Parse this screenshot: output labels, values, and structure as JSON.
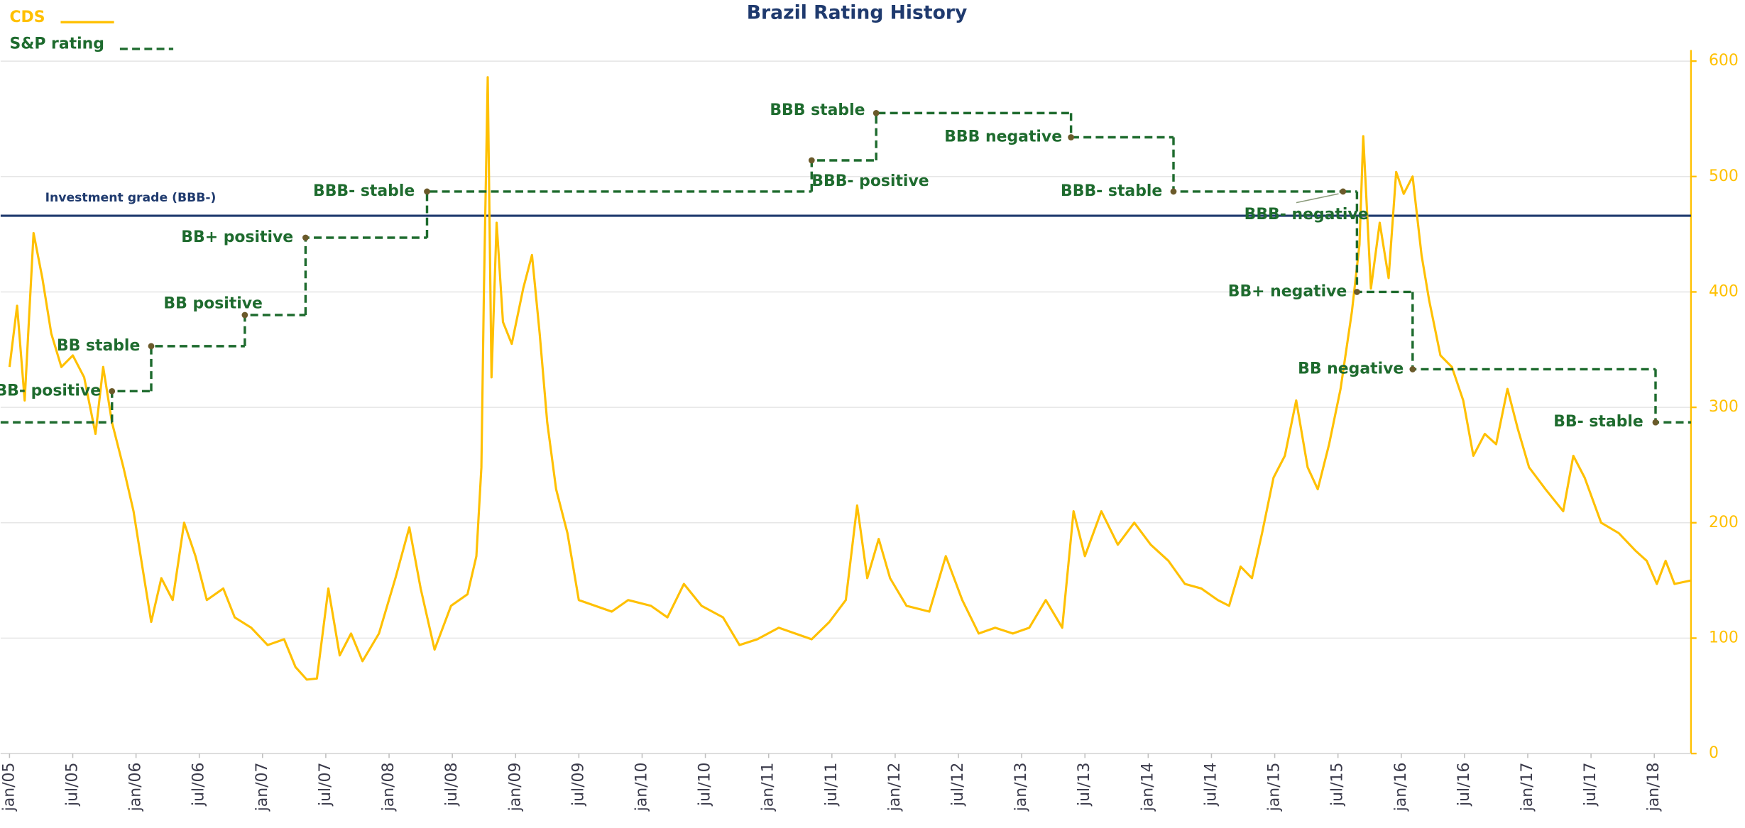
{
  "chart_data": {
    "type": "line",
    "title": "Brazil Rating History",
    "series": [
      {
        "name": "CDS",
        "color": "#FFC000",
        "x": [
          2005.0,
          2005.06,
          2005.12,
          2005.19,
          2005.26,
          2005.33,
          2005.41,
          2005.5,
          2005.59,
          2005.68,
          2005.74,
          2005.81,
          2005.9,
          2005.98,
          2006.05,
          2006.12,
          2006.2,
          2006.29,
          2006.38,
          2006.47,
          2006.56,
          2006.69,
          2006.78,
          2006.91,
          2007.04,
          2007.17,
          2007.26,
          2007.35,
          2007.43,
          2007.52,
          2007.61,
          2007.7,
          2007.79,
          2007.92,
          2008.05,
          2008.16,
          2008.25,
          2008.36,
          2008.49,
          2008.62,
          2008.69,
          2008.73,
          2008.75,
          2008.78,
          2008.81,
          2008.85,
          2008.9,
          2008.97,
          2009.06,
          2009.13,
          2009.19,
          2009.25,
          2009.32,
          2009.41,
          2009.5,
          2009.63,
          2009.76,
          2009.89,
          2010.07,
          2010.2,
          2010.33,
          2010.47,
          2010.64,
          2010.77,
          2010.91,
          2011.08,
          2011.21,
          2011.34,
          2011.48,
          2011.61,
          2011.7,
          2011.78,
          2011.87,
          2011.96,
          2012.09,
          2012.27,
          2012.4,
          2012.53,
          2012.66,
          2012.79,
          2012.93,
          2013.06,
          2013.19,
          2013.32,
          2013.41,
          2013.5,
          2013.63,
          2013.76,
          2013.89,
          2014.02,
          2014.16,
          2014.29,
          2014.42,
          2014.55,
          2014.64,
          2014.73,
          2014.82,
          2014.9,
          2014.99,
          2015.08,
          2015.17,
          2015.26,
          2015.34,
          2015.43,
          2015.52,
          2015.61,
          2015.67,
          2015.7,
          2015.76,
          2015.83,
          2015.9,
          2015.96,
          2016.02,
          2016.09,
          2016.16,
          2016.22,
          2016.31,
          2016.4,
          2016.49,
          2016.57,
          2016.66,
          2016.75,
          2016.84,
          2016.92,
          2017.01,
          2017.14,
          2017.28,
          2017.36,
          2017.45,
          2017.58,
          2017.72,
          2017.85,
          2017.94,
          2018.02,
          2018.09,
          2018.16,
          2018.29
        ],
        "values": [
          335,
          388,
          306,
          451,
          412,
          364,
          335,
          345,
          326,
          277,
          335,
          287,
          248,
          210,
          162,
          114,
          152,
          133,
          200,
          171,
          133,
          143,
          118,
          109,
          94,
          99,
          75,
          64,
          65,
          143,
          85,
          104,
          80,
          104,
          152,
          196,
          143,
          90,
          128,
          138,
          171,
          248,
          403,
          586,
          326,
          460,
          374,
          355,
          403,
          432,
          364,
          287,
          229,
          191,
          133,
          128,
          123,
          133,
          128,
          118,
          147,
          128,
          118,
          94,
          99,
          109,
          104,
          99,
          114,
          133,
          215,
          152,
          186,
          152,
          128,
          123,
          171,
          133,
          104,
          109,
          104,
          109,
          133,
          109,
          210,
          171,
          210,
          181,
          200,
          181,
          167,
          147,
          143,
          133,
          128,
          162,
          152,
          191,
          239,
          258,
          306,
          248,
          229,
          268,
          316,
          383,
          441,
          535,
          403,
          460,
          412,
          504,
          485,
          500,
          432,
          393,
          345,
          335,
          306,
          258,
          277,
          268,
          316,
          282,
          248,
          229,
          210,
          258,
          239,
          200,
          191,
          176,
          167,
          147,
          167,
          147,
          150
        ]
      },
      {
        "name": "S&P rating",
        "color": "#1E6B2E",
        "step": true,
        "dashed": true,
        "x": [
          2004.93,
          2005.81,
          2006.12,
          2006.86,
          2007.34,
          2008.3,
          2011.34,
          2011.85,
          2013.39,
          2014.2,
          2015.54,
          2015.65,
          2016.09,
          2018.01
        ],
        "values": [
          287,
          314,
          353,
          380,
          447,
          487,
          514,
          555,
          534,
          487,
          487,
          400,
          333,
          287
        ],
        "point_labels": [
          null,
          "BB- positive",
          "BB stable",
          "BB positive",
          "BB+ positive",
          "BBB- stable",
          "BBB- positive",
          "BBB  stable",
          "BBB negative",
          "BBB- stable",
          "BBB- negative",
          "BB+ negative",
          "BB negative",
          "BB- stable"
        ]
      }
    ],
    "reference_line": {
      "value": 466,
      "label": "Investment grade (BBB-)",
      "color": "#1F3A6E"
    },
    "xlim": [
      2004.93,
      2018.29
    ],
    "xticks": [
      {
        "value": 2005,
        "label": "jan/05"
      },
      {
        "value": 2005.5,
        "label": "jul/05"
      },
      {
        "value": 2006,
        "label": "jan/06"
      },
      {
        "value": 2006.5,
        "label": "jul/06"
      },
      {
        "value": 2007,
        "label": "jan/07"
      },
      {
        "value": 2007.5,
        "label": "jul/07"
      },
      {
        "value": 2008,
        "label": "jan/08"
      },
      {
        "value": 2008.5,
        "label": "jul/08"
      },
      {
        "value": 2009,
        "label": "jan/09"
      },
      {
        "value": 2009.5,
        "label": "jul/09"
      },
      {
        "value": 2010,
        "label": "jan/10"
      },
      {
        "value": 2010.5,
        "label": "jul/10"
      },
      {
        "value": 2011,
        "label": "jan/11"
      },
      {
        "value": 2011.5,
        "label": "jul/11"
      },
      {
        "value": 2012,
        "label": "jan/12"
      },
      {
        "value": 2012.5,
        "label": "jul/12"
      },
      {
        "value": 2013,
        "label": "jan/13"
      },
      {
        "value": 2013.5,
        "label": "jul/13"
      },
      {
        "value": 2014,
        "label": "jan/14"
      },
      {
        "value": 2014.5,
        "label": "jul/14"
      },
      {
        "value": 2015,
        "label": "jan/15"
      },
      {
        "value": 2015.5,
        "label": "jul/15"
      },
      {
        "value": 2016,
        "label": "jan/16"
      },
      {
        "value": 2016.5,
        "label": "jul/16"
      },
      {
        "value": 2017,
        "label": "jan/17"
      },
      {
        "value": 2017.5,
        "label": "jul/17"
      },
      {
        "value": 2018,
        "label": "jan/18"
      }
    ],
    "ylim": [
      0,
      600
    ],
    "yticks": [
      0,
      100,
      200,
      300,
      400,
      500,
      600
    ],
    "y_axis_side": "right",
    "grid": true
  }
}
